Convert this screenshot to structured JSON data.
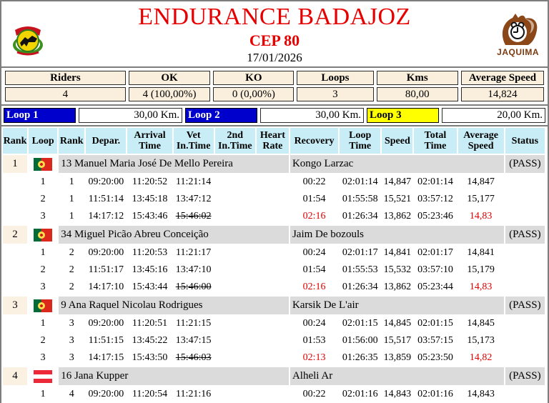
{
  "header": {
    "title": "ENDURANCE BADAJOZ",
    "subtitle": "CEP 80",
    "date": "17/01/2026",
    "right_logo_label": "JAQUIMA"
  },
  "summary": {
    "headers": [
      "Riders",
      "OK",
      "KO",
      "Loops",
      "Kms",
      "Average Speed"
    ],
    "values": [
      "4",
      "4 (100,00%)",
      "0 (0,00%)",
      "3",
      "80,00",
      "14,824"
    ]
  },
  "loops_bar": [
    {
      "label": "Loop 1",
      "km": "30,00 Km.",
      "bg": "#0000cc",
      "fg": "#ffffff"
    },
    {
      "label": "Loop 2",
      "km": "30,00 Km.",
      "bg": "#0000cc",
      "fg": "#ffffff"
    },
    {
      "label": "Loop 3",
      "km": "20,00 Km.",
      "bg": "#ffff00",
      "fg": "#000000"
    }
  ],
  "colors": {
    "title_red": "#e60000",
    "alert_red": "#e00000",
    "header_cyan": "#c9edf6",
    "rider_gray": "#dbdbdb",
    "rank_cream": "#fbf1e2",
    "cell_beige": "#faefdc"
  },
  "results": {
    "headers": [
      "Rank",
      "Loop",
      "Rank",
      "Depar.",
      "Arrival\nTime",
      "Vet\nIn.Time",
      "2nd\nIn.Time",
      "Heart\nRate",
      "Recovery",
      "Loop\nTime",
      "Speed",
      "Total\nTime",
      "Average\nSpeed",
      "Status"
    ],
    "riders": [
      {
        "rank": "1",
        "flag": "pt",
        "name": "13 Manuel Maria José De Mello Pereira",
        "horse": "Kongo Larzac",
        "status": "(PASS)",
        "loops": [
          {
            "loop": "1",
            "rank": "1",
            "depar": "09:20:00",
            "arrival": "11:20:52",
            "vet": "11:21:14",
            "vet_struck": false,
            "second": "",
            "heart": "",
            "recovery": "00:22",
            "recovery_red": false,
            "loop_time": "02:01:14",
            "speed": "14,847",
            "total_time": "02:01:14",
            "avg_speed": "14,847",
            "avg_red": false
          },
          {
            "loop": "2",
            "rank": "1",
            "depar": "11:51:14",
            "arrival": "13:45:18",
            "vet": "13:47:12",
            "vet_struck": false,
            "second": "",
            "heart": "",
            "recovery": "01:54",
            "recovery_red": false,
            "loop_time": "01:55:58",
            "speed": "15,521",
            "total_time": "03:57:12",
            "avg_speed": "15,177",
            "avg_red": false
          },
          {
            "loop": "3",
            "rank": "1",
            "depar": "14:17:12",
            "arrival": "15:43:46",
            "vet": "15:46:02",
            "vet_struck": true,
            "second": "",
            "heart": "",
            "recovery": "02:16",
            "recovery_red": true,
            "loop_time": "01:26:34",
            "speed": "13,862",
            "total_time": "05:23:46",
            "avg_speed": "14,83",
            "avg_red": true
          }
        ]
      },
      {
        "rank": "2",
        "flag": "pt",
        "name": "34 Miguel Picão Abreu Conceição",
        "horse": "Jaim De bozouls",
        "status": "(PASS)",
        "loops": [
          {
            "loop": "1",
            "rank": "2",
            "depar": "09:20:00",
            "arrival": "11:20:53",
            "vet": "11:21:17",
            "vet_struck": false,
            "second": "",
            "heart": "",
            "recovery": "00:24",
            "recovery_red": false,
            "loop_time": "02:01:17",
            "speed": "14,841",
            "total_time": "02:01:17",
            "avg_speed": "14,841",
            "avg_red": false
          },
          {
            "loop": "2",
            "rank": "2",
            "depar": "11:51:17",
            "arrival": "13:45:16",
            "vet": "13:47:10",
            "vet_struck": false,
            "second": "",
            "heart": "",
            "recovery": "01:54",
            "recovery_red": false,
            "loop_time": "01:55:53",
            "speed": "15,532",
            "total_time": "03:57:10",
            "avg_speed": "15,179",
            "avg_red": false
          },
          {
            "loop": "3",
            "rank": "2",
            "depar": "14:17:10",
            "arrival": "15:43:44",
            "vet": "15:46:00",
            "vet_struck": true,
            "second": "",
            "heart": "",
            "recovery": "02:16",
            "recovery_red": true,
            "loop_time": "01:26:34",
            "speed": "13,862",
            "total_time": "05:23:44",
            "avg_speed": "14,83",
            "avg_red": true
          }
        ]
      },
      {
        "rank": "3",
        "flag": "pt",
        "name": "9 Ana Raquel Nicolau Rodrigues",
        "horse": "Karsik De L'air",
        "status": "(PASS)",
        "loops": [
          {
            "loop": "1",
            "rank": "3",
            "depar": "09:20:00",
            "arrival": "11:20:51",
            "vet": "11:21:15",
            "vet_struck": false,
            "second": "",
            "heart": "",
            "recovery": "00:24",
            "recovery_red": false,
            "loop_time": "02:01:15",
            "speed": "14,845",
            "total_time": "02:01:15",
            "avg_speed": "14,845",
            "avg_red": false
          },
          {
            "loop": "2",
            "rank": "3",
            "depar": "11:51:15",
            "arrival": "13:45:22",
            "vet": "13:47:15",
            "vet_struck": false,
            "second": "",
            "heart": "",
            "recovery": "01:53",
            "recovery_red": false,
            "loop_time": "01:56:00",
            "speed": "15,517",
            "total_time": "03:57:15",
            "avg_speed": "15,173",
            "avg_red": false
          },
          {
            "loop": "3",
            "rank": "3",
            "depar": "14:17:15",
            "arrival": "15:43:50",
            "vet": "15:46:03",
            "vet_struck": true,
            "second": "",
            "heart": "",
            "recovery": "02:13",
            "recovery_red": true,
            "loop_time": "01:26:35",
            "speed": "13,859",
            "total_time": "05:23:50",
            "avg_speed": "14,82",
            "avg_red": true
          }
        ]
      },
      {
        "rank": "4",
        "flag": "at",
        "name": "16 Jana Kupper",
        "horse": "Alheli Ar",
        "status": "(PASS)",
        "loops": [
          {
            "loop": "1",
            "rank": "4",
            "depar": "09:20:00",
            "arrival": "11:20:54",
            "vet": "11:21:16",
            "vet_struck": false,
            "second": "",
            "heart": "",
            "recovery": "00:22",
            "recovery_red": false,
            "loop_time": "02:01:16",
            "speed": "14,843",
            "total_time": "02:01:16",
            "avg_speed": "14,843",
            "avg_red": false
          }
        ]
      }
    ]
  }
}
